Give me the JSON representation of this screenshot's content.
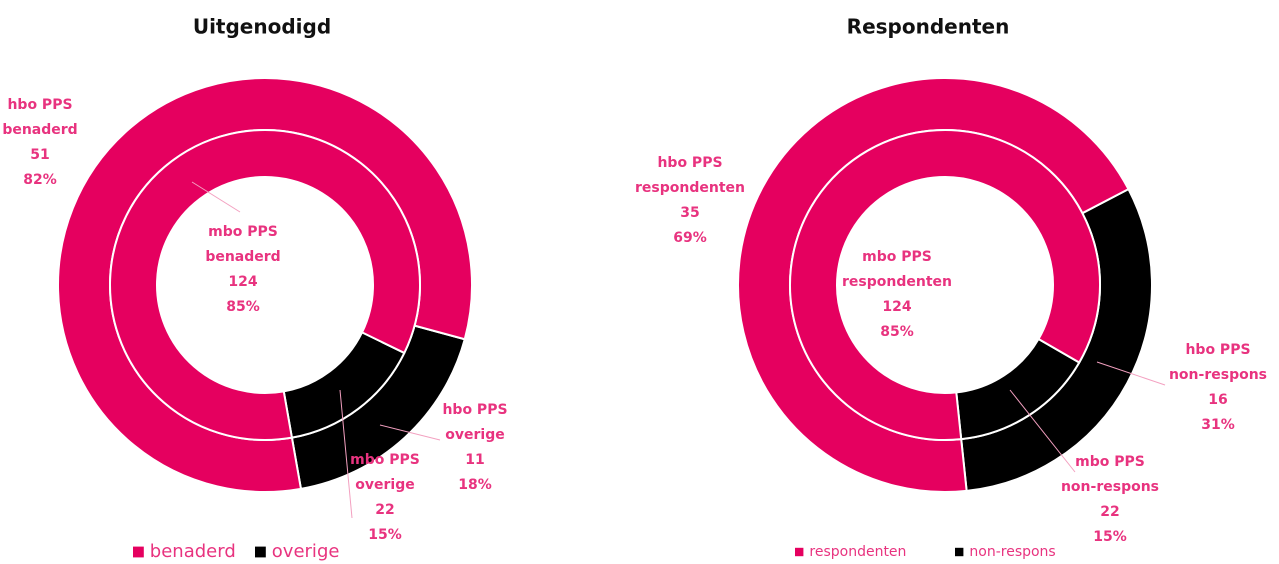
{
  "chart_data": [
    {
      "type": "donut",
      "title": "Uitgenodigd",
      "categories": [
        "benaderd",
        "overige"
      ],
      "colors": [
        "#e5005f",
        "#000000"
      ],
      "rings": [
        {
          "labels": [
            [
              "mbo PPS",
              "benaderd"
            ],
            [
              "mbo PPS",
              "overige"
            ]
          ],
          "values": [
            124,
            22
          ],
          "percents": [
            85,
            15
          ],
          "percent_labels": [
            "85%",
            "15%"
          ]
        },
        {
          "labels": [
            [
              "hbo PPS",
              "benaderd"
            ],
            [
              "hbo PPS",
              "overige"
            ]
          ],
          "values": [
            51,
            11
          ],
          "percents": [
            82,
            18
          ],
          "percent_labels": [
            "82%",
            "18%"
          ]
        }
      ]
    },
    {
      "type": "donut",
      "title": "Respondenten",
      "categories": [
        "respondenten",
        "non-respons"
      ],
      "colors": [
        "#e5005f",
        "#000000"
      ],
      "rings": [
        {
          "labels": [
            [
              "mbo PPS",
              "respondenten"
            ],
            [
              "mbo PPS",
              "non-respons"
            ]
          ],
          "values": [
            124,
            22
          ],
          "percents": [
            85,
            15
          ],
          "percent_labels": [
            "85%",
            "15%"
          ]
        },
        {
          "labels": [
            [
              "hbo PPS",
              "respondenten"
            ],
            [
              "hbo PPS",
              "non-respons"
            ]
          ],
          "values": [
            35,
            16
          ],
          "percents": [
            69,
            31
          ],
          "percent_labels": [
            "69%",
            "31%"
          ]
        }
      ]
    }
  ]
}
